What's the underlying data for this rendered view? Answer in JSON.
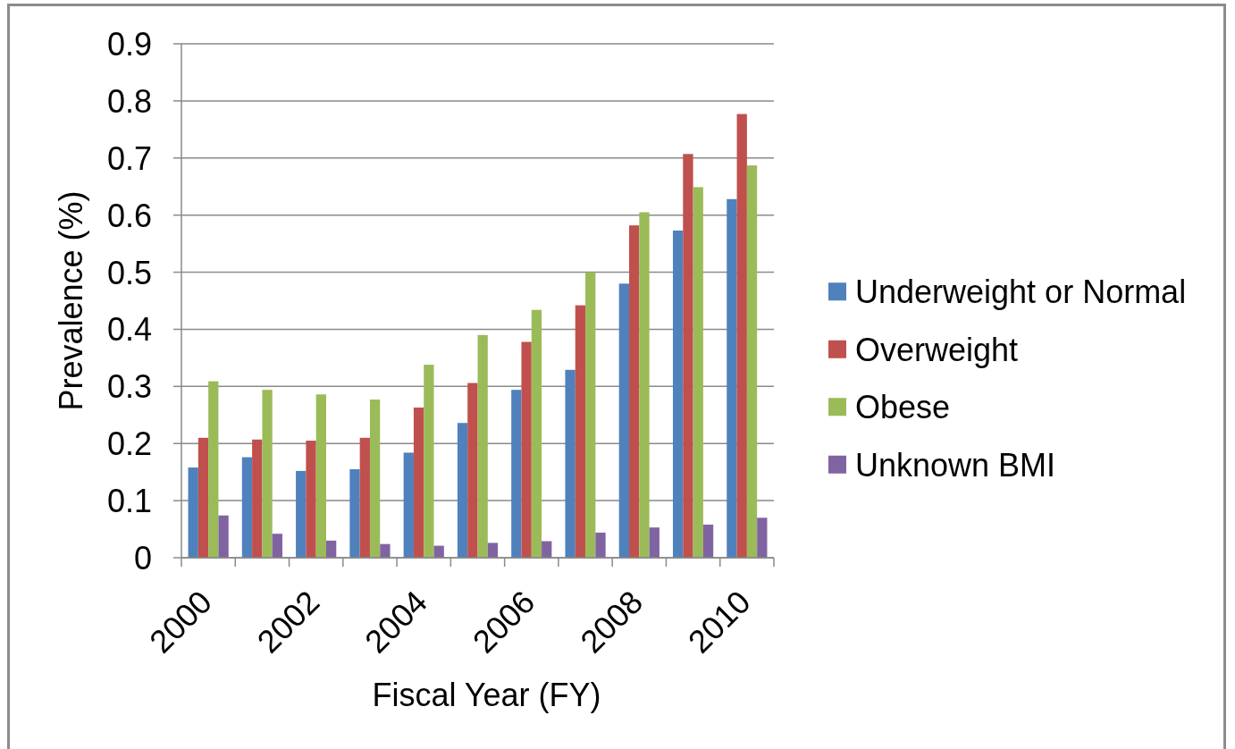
{
  "chart_data": {
    "type": "bar",
    "xlabel": "Fiscal Year (FY)",
    "ylabel": "Prevalence (%)",
    "categories": [
      "2000",
      null,
      "2002",
      null,
      "2004",
      null,
      "2006",
      null,
      "2008",
      null,
      "2010"
    ],
    "series": [
      {
        "name": "Underweight or Normal",
        "color": "#4f81bd",
        "values": [
          0.158,
          0.176,
          0.152,
          0.155,
          0.184,
          0.236,
          0.294,
          0.329,
          0.48,
          0.573,
          0.628
        ]
      },
      {
        "name": "Overweight",
        "color": "#c0504d",
        "values": [
          0.21,
          0.207,
          0.205,
          0.21,
          0.263,
          0.306,
          0.378,
          0.442,
          0.582,
          0.707,
          0.777
        ]
      },
      {
        "name": "Obese",
        "color": "#9bbb59",
        "values": [
          0.309,
          0.294,
          0.286,
          0.277,
          0.338,
          0.39,
          0.434,
          0.5,
          0.605,
          0.649,
          0.687
        ]
      },
      {
        "name": "Unknown BMI",
        "color": "#8064a2",
        "values": [
          0.074,
          0.042,
          0.03,
          0.024,
          0.021,
          0.026,
          0.029,
          0.044,
          0.053,
          0.058,
          0.07
        ]
      }
    ],
    "ylim": [
      0,
      0.9
    ],
    "yticks": [
      0,
      0.1,
      0.2,
      0.3,
      0.4,
      0.5,
      0.6,
      0.7,
      0.8,
      0.9
    ],
    "grid": "y",
    "legend": "right"
  }
}
